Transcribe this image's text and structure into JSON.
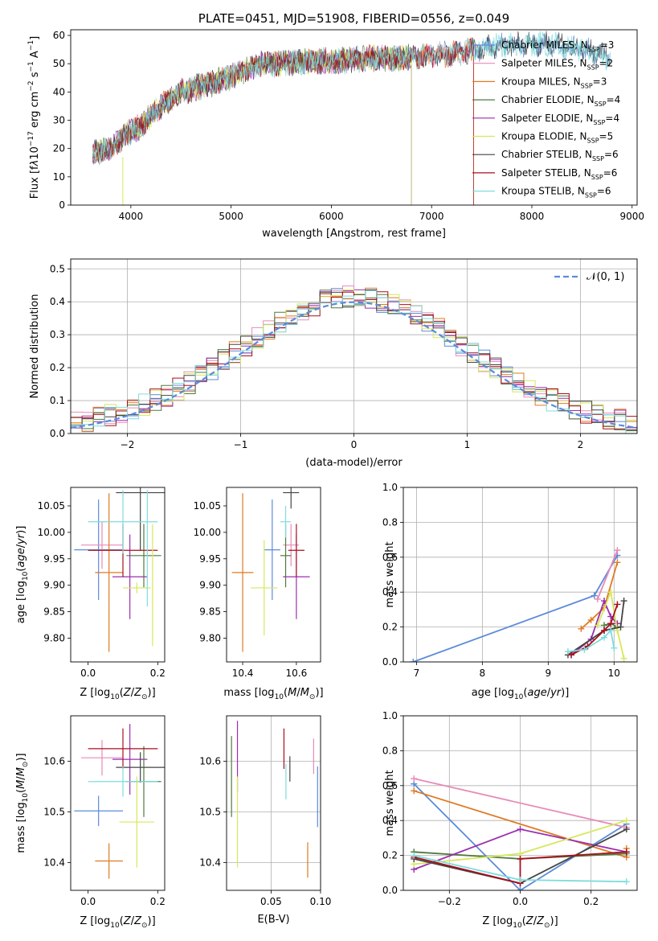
{
  "colors": {
    "Chabrier MILES": "#5b8bd9",
    "Salpeter MILES": "#e88ab8",
    "Kroupa MILES": "#e07a22",
    "Chabrier ELODIE": "#4f7a3d",
    "Salpeter ELODIE": "#9b2fae",
    "Kroupa ELODIE": "#d6e85a",
    "Chabrier STELIB": "#444444",
    "Salpeter STELIB": "#a80f1c",
    "Kroupa STELIB": "#7fdcdc",
    "normal": "#5b8bd9"
  },
  "chart_data": [
    {
      "id": "spectrum",
      "type": "line",
      "title": "PLATE=0451, MJD=51908, FIBERID=0556, z=0.049",
      "xlabel": "wavelength [Angstrom, rest frame]",
      "ylabel_html": "Flux [f<tspan font-style='italic'>λ</tspan>10<tspan dy='-6' font-size='9'>−17</tspan><tspan dy='6'> erg cm</tspan><tspan dy='-6' font-size='9'>−2</tspan><tspan dy='6'> s</tspan><tspan dy='-6' font-size='9'>−1</tspan><tspan dy='6'> A</tspan><tspan dy='-6' font-size='9'>−1</tspan><tspan dy='6'>]</tspan>",
      "xlim": [
        3400,
        9050
      ],
      "ylim": [
        0,
        62
      ],
      "xticks": [
        4000,
        5000,
        6000,
        7000,
        8000,
        9000
      ],
      "yticks": [
        0,
        10,
        20,
        30,
        40,
        50,
        60
      ],
      "grid": false,
      "legend_position": "right",
      "legend": [
        {
          "name": "Chabrier MILES",
          "n": "3"
        },
        {
          "name": "Salpeter MILES",
          "n": "2"
        },
        {
          "name": "Kroupa MILES",
          "n": "3"
        },
        {
          "name": "Chabrier ELODIE",
          "n": "4"
        },
        {
          "name": "Salpeter ELODIE",
          "n": "4"
        },
        {
          "name": "Kroupa ELODIE",
          "n": "5"
        },
        {
          "name": "Chabrier STELIB",
          "n": "6"
        },
        {
          "name": "Salpeter STELIB",
          "n": "6"
        },
        {
          "name": "Kroupa STELIB",
          "n": "6"
        }
      ],
      "legend_n_label": "SSP",
      "continuum_x": [
        3600,
        3800,
        3950,
        4100,
        4300,
        4500,
        4700,
        4900,
        5100,
        5300,
        5500,
        5800,
        6100,
        6400,
        6700,
        7000,
        7300,
        7600,
        7900,
        8200,
        8500,
        8800
      ],
      "continuum_y": [
        18,
        20,
        25,
        28,
        35,
        40,
        42,
        44,
        47,
        50,
        50,
        51,
        51,
        52,
        52,
        53,
        54,
        56,
        57,
        57,
        55,
        52
      ]
    },
    {
      "id": "residuals",
      "type": "step",
      "xlabel": "(data-model)/error",
      "ylabel": "Normed distribution",
      "xlim": [
        -2.5,
        2.5
      ],
      "ylim": [
        0,
        0.53
      ],
      "xticks": [
        -2,
        -1,
        0,
        1,
        2
      ],
      "yticks": [
        0.0,
        0.1,
        0.2,
        0.3,
        0.4,
        0.5
      ],
      "grid": true,
      "bin_width": 0.1,
      "legend": "𝒩(0, 1)",
      "legend_position": "top-right"
    },
    {
      "id": "age_vs_Z",
      "type": "errorbar",
      "xlabel_html": "Z [log<tspan dy='4' font-size='9'>10</tspan><tspan dy='-4'>(</tspan><tspan font-style='italic'>Z</tspan>/<tspan font-style='italic'>Z</tspan><tspan dy='4' font-size='9'>⊙</tspan><tspan dy='-4'>)]</tspan>",
      "ylabel_html": "age  [log<tspan dy='4' font-size='9'>10</tspan><tspan dy='-4'>(</tspan><tspan font-style='italic'>age</tspan>/<tspan font-style='italic'>yr</tspan>)]",
      "xlim": [
        -0.05,
        0.22
      ],
      "ylim": [
        9.755,
        10.085
      ],
      "xticks": [
        0.0,
        0.2
      ],
      "yticks": [
        9.8,
        9.85,
        9.9,
        9.95,
        10.0,
        10.05
      ],
      "points": [
        {
          "model": "Chabrier MILES",
          "x": 0.03,
          "xerr": 0.07,
          "y": 9.967,
          "yerr": 0.095
        },
        {
          "model": "Salpeter MILES",
          "x": 0.04,
          "xerr": 0.06,
          "y": 9.976,
          "yerr": 0.045
        },
        {
          "model": "Kroupa MILES",
          "x": 0.06,
          "xerr": 0.04,
          "y": 9.924,
          "yerr": 0.15
        },
        {
          "model": "Chabrier ELODIE",
          "x": 0.16,
          "xerr": 0.05,
          "y": 9.956,
          "yerr": 0.06
        },
        {
          "model": "Salpeter ELODIE",
          "x": 0.12,
          "xerr": 0.05,
          "y": 9.916,
          "yerr": 0.08
        },
        {
          "model": "Kroupa ELODIE",
          "x": 0.14,
          "xerr": 0.04,
          "y": 9.895,
          "yerr": 0.01
        },
        {
          "model": "Chabrier STELIB",
          "x": 0.15,
          "xerr": 0.07,
          "y": 10.075,
          "yerr": 0.11
        },
        {
          "model": "Salpeter STELIB",
          "x": 0.1,
          "xerr": 0.1,
          "y": 9.966,
          "yerr": 0.05
        },
        {
          "model": "Kroupa STELIB",
          "x": 0.1,
          "xerr": 0.1,
          "y": 10.02,
          "yerr": 0.06
        },
        {
          "model": "Kroupa ELODIE",
          "x": 0.185,
          "xerr": 0.0,
          "y": 9.9,
          "yerr": 0.115
        },
        {
          "model": "Kroupa STELIB",
          "x": 0.17,
          "xerr": 0.0,
          "y": 9.97,
          "yerr": 0.11
        }
      ]
    },
    {
      "id": "age_vs_mass",
      "type": "errorbar",
      "xlabel_html": "mass [log<tspan dy='4' font-size='9'>10</tspan><tspan dy='-4'>(</tspan><tspan font-style='italic'>M</tspan>/<tspan font-style='italic'>M</tspan><tspan dy='4' font-size='9'>⊙</tspan><tspan dy='-4'>)]</tspan>",
      "xlim": [
        10.34,
        10.69
      ],
      "ylim": [
        9.755,
        10.085
      ],
      "xticks": [
        10.4,
        10.6
      ],
      "yticks": [
        9.8,
        9.85,
        9.9,
        9.95,
        10.0,
        10.05
      ],
      "points": [
        {
          "model": "Chabrier MILES",
          "x": 10.51,
          "xerr": 0.03,
          "y": 9.967,
          "yerr": 0.095
        },
        {
          "model": "Salpeter MILES",
          "x": 10.58,
          "xerr": 0.03,
          "y": 9.976,
          "yerr": 0.04
        },
        {
          "model": "Kroupa MILES",
          "x": 10.4,
          "xerr": 0.04,
          "y": 9.924,
          "yerr": 0.15
        },
        {
          "model": "Chabrier ELODIE",
          "x": 10.56,
          "xerr": 0.02,
          "y": 9.956,
          "yerr": 0.06
        },
        {
          "model": "Salpeter ELODIE",
          "x": 10.6,
          "xerr": 0.05,
          "y": 9.916,
          "yerr": 0.08
        },
        {
          "model": "Kroupa ELODIE",
          "x": 10.48,
          "xerr": 0.05,
          "y": 9.895,
          "yerr": 0.09
        },
        {
          "model": "Chabrier STELIB",
          "x": 10.58,
          "xerr": 0.03,
          "y": 10.075,
          "yerr": 0.03
        },
        {
          "model": "Salpeter STELIB",
          "x": 10.6,
          "xerr": 0.03,
          "y": 9.966,
          "yerr": 0.05
        },
        {
          "model": "Kroupa STELIB",
          "x": 10.56,
          "xerr": 0.02,
          "y": 10.02,
          "yerr": 0.03
        }
      ]
    },
    {
      "id": "weight_vs_age",
      "type": "line",
      "xlabel_html": "age  [log<tspan dy='4' font-size='9'>10</tspan><tspan dy='-4'>(</tspan><tspan font-style='italic'>age</tspan>/<tspan font-style='italic'>yr</tspan>)]",
      "ylabel": "mass weight",
      "xlim": [
        6.8,
        10.35
      ],
      "ylim": [
        0,
        1.0
      ],
      "xticks": [
        7,
        8,
        9,
        10
      ],
      "yticks": [
        0.0,
        0.2,
        0.4,
        0.6,
        0.8,
        1.0
      ],
      "grid": true,
      "series": [
        {
          "model": "Chabrier MILES",
          "x": [
            6.95,
            9.7,
            10.05
          ],
          "y": [
            0.0,
            0.38,
            0.61
          ]
        },
        {
          "model": "Salpeter MILES",
          "x": [
            9.75,
            10.05
          ],
          "y": [
            0.36,
            0.64
          ]
        },
        {
          "model": "Kroupa MILES",
          "x": [
            9.5,
            9.65,
            9.85,
            10.05
          ],
          "y": [
            0.19,
            0.24,
            0.31,
            0.57
          ]
        },
        {
          "model": "Chabrier ELODIE",
          "x": [
            9.85,
            9.95,
            10.05
          ],
          "y": [
            0.21,
            0.22,
            0.2
          ]
        },
        {
          "model": "Salpeter ELODIE",
          "x": [
            9.35,
            9.65,
            9.85,
            9.95,
            10.05
          ],
          "y": [
            0.04,
            0.13,
            0.35,
            0.26,
            0.22
          ]
        },
        {
          "model": "Kroupa ELODIE",
          "x": [
            9.75,
            9.95,
            10.05,
            10.15
          ],
          "y": [
            0.21,
            0.4,
            0.18,
            0.02
          ]
        },
        {
          "model": "Chabrier STELIB",
          "x": [
            9.3,
            9.85,
            10.1,
            10.15
          ],
          "y": [
            0.04,
            0.18,
            0.2,
            0.35
          ]
        },
        {
          "model": "Salpeter STELIB",
          "x": [
            9.35,
            9.6,
            9.85,
            9.95,
            10.05
          ],
          "y": [
            0.04,
            0.09,
            0.18,
            0.22,
            0.33
          ]
        },
        {
          "model": "Kroupa STELIB",
          "x": [
            9.3,
            9.55,
            9.85,
            9.95,
            10.0
          ],
          "y": [
            0.06,
            0.07,
            0.14,
            0.18,
            0.08
          ]
        }
      ]
    },
    {
      "id": "mass_vs_Z",
      "type": "errorbar",
      "xlabel_html": "Z [log<tspan dy='4' font-size='9'>10</tspan><tspan dy='-4'>(</tspan><tspan font-style='italic'>Z</tspan>/<tspan font-style='italic'>Z</tspan><tspan dy='4' font-size='9'>⊙</tspan><tspan dy='-4'>)]</tspan>",
      "ylabel_html": "mass [log<tspan dy='4' font-size='9'>10</tspan><tspan dy='-4'>(</tspan><tspan font-style='italic'>M</tspan>/<tspan font-style='italic'>M</tspan><tspan dy='4' font-size='9'>⊙</tspan><tspan dy='-4'>)]</tspan>",
      "xlim": [
        -0.05,
        0.22
      ],
      "ylim": [
        10.345,
        10.69
      ],
      "xticks": [
        0.0,
        0.2
      ],
      "yticks": [
        10.4,
        10.5,
        10.6
      ],
      "points": [
        {
          "model": "Chabrier MILES",
          "x": 0.03,
          "xerr": 0.07,
          "y": 10.502,
          "yerr": 0.03
        },
        {
          "model": "Salpeter MILES",
          "x": 0.04,
          "xerr": 0.06,
          "y": 10.607,
          "yerr": 0.035
        },
        {
          "model": "Kroupa MILES",
          "x": 0.06,
          "xerr": 0.04,
          "y": 10.403,
          "yerr": 0.035
        },
        {
          "model": "Chabrier ELODIE",
          "x": 0.16,
          "xerr": 0.05,
          "y": 10.56,
          "yerr": 0.07
        },
        {
          "model": "Salpeter ELODIE",
          "x": 0.12,
          "xerr": 0.05,
          "y": 10.604,
          "yerr": 0.07
        },
        {
          "model": "Kroupa ELODIE",
          "x": 0.14,
          "xerr": 0.05,
          "y": 10.48,
          "yerr": 0.09
        },
        {
          "model": "Chabrier STELIB",
          "x": 0.15,
          "xerr": 0.07,
          "y": 10.588,
          "yerr": 0.03
        },
        {
          "model": "Salpeter STELIB",
          "x": 0.1,
          "xerr": 0.1,
          "y": 10.625,
          "yerr": 0.04
        },
        {
          "model": "Kroupa STELIB",
          "x": 0.1,
          "xerr": 0.1,
          "y": 10.56,
          "yerr": 0.03
        }
      ]
    },
    {
      "id": "mass_vs_ebv",
      "type": "errorbar",
      "xlabel": "E(B-V)",
      "xlim": [
        0.005,
        0.1
      ],
      "ylim": [
        10.345,
        10.69
      ],
      "xticks": [
        0.05,
        0.1
      ],
      "xticklabels": [
        "0.05",
        "0.10"
      ],
      "yticks": [
        10.4,
        10.5,
        10.6
      ],
      "grid": true,
      "points": [
        {
          "model": "Chabrier MILES",
          "x": 0.097,
          "xerr": 0,
          "y": 10.53,
          "yerr": 0.06
        },
        {
          "model": "Salpeter MILES",
          "x": 0.093,
          "xerr": 0,
          "y": 10.61,
          "yerr": 0.035
        },
        {
          "model": "Kroupa MILES",
          "x": 0.087,
          "xerr": 0,
          "y": 10.405,
          "yerr": 0.035
        },
        {
          "model": "Chabrier ELODIE",
          "x": 0.01,
          "xerr": 0,
          "y": 10.57,
          "yerr": 0.08
        },
        {
          "model": "Salpeter ELODIE",
          "x": 0.016,
          "xerr": 0,
          "y": 10.61,
          "yerr": 0.07
        },
        {
          "model": "Kroupa ELODIE",
          "x": 0.016,
          "xerr": 0,
          "y": 10.48,
          "yerr": 0.09
        },
        {
          "model": "Chabrier STELIB",
          "x": 0.069,
          "xerr": 0,
          "y": 10.585,
          "yerr": 0.025
        },
        {
          "model": "Salpeter STELIB",
          "x": 0.063,
          "xerr": 0,
          "y": 10.625,
          "yerr": 0.04
        },
        {
          "model": "Kroupa STELIB",
          "x": 0.065,
          "xerr": 0,
          "y": 10.56,
          "yerr": 0.035
        }
      ]
    },
    {
      "id": "weight_vs_Z",
      "type": "line",
      "xlabel_html": "Z [log<tspan dy='4' font-size='9'>10</tspan><tspan dy='-4'>(</tspan><tspan font-style='italic'>Z</tspan>/<tspan font-style='italic'>Z</tspan><tspan dy='4' font-size='9'>⊙</tspan><tspan dy='-4'>)]</tspan>",
      "ylabel": "mass weight",
      "xlim": [
        -0.33,
        0.33
      ],
      "ylim": [
        0,
        1.0
      ],
      "xticks": [
        -0.2,
        0.0,
        0.2
      ],
      "xticklabels": [
        "−0.2",
        "0.0",
        "0.2"
      ],
      "yticks": [
        0.0,
        0.2,
        0.4,
        0.6,
        0.8,
        1.0
      ],
      "grid": true,
      "series": [
        {
          "model": "Chabrier MILES",
          "x": [
            -0.3,
            0.0,
            0.3
          ],
          "y": [
            0.61,
            0.0,
            0.38
          ]
        },
        {
          "model": "Salpeter MILES",
          "x": [
            -0.3,
            0.3
          ],
          "y": [
            0.64,
            0.36
          ]
        },
        {
          "model": "Kroupa MILES",
          "x": [
            -0.3,
            0.3,
            0.3
          ],
          "y": [
            0.57,
            0.19,
            0.24
          ]
        },
        {
          "model": "Chabrier ELODIE",
          "x": [
            -0.3,
            0.0,
            0.3
          ],
          "y": [
            0.22,
            0.18,
            0.21
          ]
        },
        {
          "model": "Salpeter ELODIE",
          "x": [
            -0.3,
            0.0,
            0.3
          ],
          "y": [
            0.12,
            0.35,
            0.22
          ]
        },
        {
          "model": "Kroupa ELODIE",
          "x": [
            -0.3,
            0.0,
            0.3
          ],
          "y": [
            0.15,
            0.21,
            0.4
          ]
        },
        {
          "model": "Chabrier STELIB",
          "x": [
            -0.3,
            0.0,
            0.3
          ],
          "y": [
            0.18,
            0.04,
            0.35
          ]
        },
        {
          "model": "Salpeter STELIB",
          "x": [
            -0.3,
            0.0,
            0.0,
            0.3
          ],
          "y": [
            0.19,
            0.04,
            0.18,
            0.22
          ]
        },
        {
          "model": "Kroupa STELIB",
          "x": [
            -0.3,
            0.0,
            0.3
          ],
          "y": [
            0.2,
            0.06,
            0.05
          ]
        }
      ]
    }
  ]
}
